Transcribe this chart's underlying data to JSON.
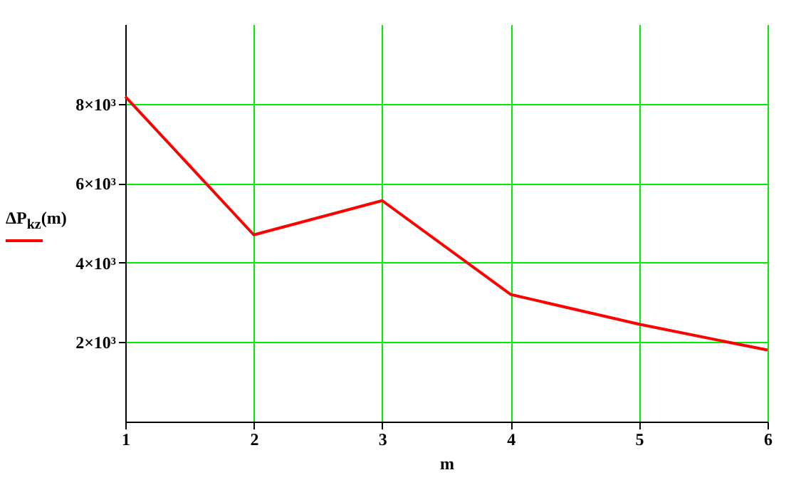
{
  "chart_data": {
    "type": "line",
    "xlabel": "m",
    "x": [
      1,
      2,
      3,
      4,
      5,
      6
    ],
    "series": [
      {
        "name": "ΔP$_{kz}$(m)",
        "color": "#ff0000",
        "values": [
          8180,
          4700,
          5560,
          3200,
          2450,
          1800
        ]
      }
    ],
    "xlim": [
      1,
      6
    ],
    "xticks": [
      1,
      2,
      3,
      4,
      5,
      6
    ],
    "ylim": [
      0,
      10000
    ],
    "yticks": [
      {
        "value": 2000,
        "label": "2×10³"
      },
      {
        "value": 4000,
        "label": "4×10³"
      },
      {
        "value": 6000,
        "label": "6×10³"
      },
      {
        "value": 8000,
        "label": "8×10³"
      }
    ],
    "grid": true,
    "legend": "left",
    "marker": "none",
    "line_style": "solid"
  }
}
